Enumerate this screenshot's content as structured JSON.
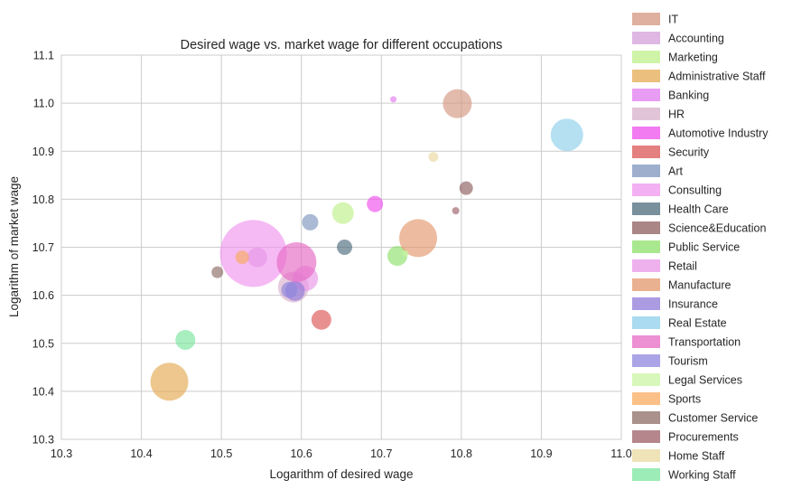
{
  "chart_data": {
    "type": "scatter",
    "title": "Desired wage vs. market wage for different occupations",
    "xlabel": "Logarithm of desired wage",
    "ylabel": "Logarithm of market wage",
    "xlim": [
      10.3,
      11.0
    ],
    "ylim": [
      10.3,
      11.1
    ],
    "xticks": [
      10.3,
      10.4,
      10.5,
      10.6,
      10.7,
      10.8,
      10.9,
      11.0
    ],
    "yticks": [
      10.3,
      10.4,
      10.5,
      10.6,
      10.7,
      10.8,
      10.9,
      11.0,
      11.1
    ],
    "xtick_labels": [
      "10.3",
      "10.4",
      "10.5",
      "10.6",
      "10.7",
      "10.8",
      "10.9",
      "11.0"
    ],
    "ytick_labels": [
      "10.3",
      "10.4",
      "10.5",
      "10.6",
      "10.7",
      "10.8",
      "10.9",
      "11.0",
      "11.1"
    ],
    "grid": true,
    "legend_position": "right-outside",
    "series": [
      {
        "name": "IT",
        "color": "#d4967f",
        "x": 10.795,
        "y": 10.999,
        "size": 16
      },
      {
        "name": "Accounting",
        "color": "#d49fd9",
        "x": 10.545,
        "y": 10.679,
        "size": 11
      },
      {
        "name": "Marketing",
        "color": "#bff08a",
        "x": 10.652,
        "y": 10.771,
        "size": 12
      },
      {
        "name": "Administrative Staff",
        "color": "#e4a952",
        "x": 10.435,
        "y": 10.42,
        "size": 21
      },
      {
        "name": "Banking",
        "color": "#e27bf0",
        "x": 10.715,
        "y": 11.008,
        "size": 3.5
      },
      {
        "name": "HR",
        "color": "#d8b0cc",
        "x": 10.59,
        "y": 10.617,
        "size": 17
      },
      {
        "name": "Automotive Industry",
        "color": "#ee4fee",
        "x": 10.692,
        "y": 10.79,
        "size": 9
      },
      {
        "name": "Security",
        "color": "#db5555",
        "x": 10.625,
        "y": 10.549,
        "size": 11
      },
      {
        "name": "Art",
        "color": "#7d94bd",
        "x": 10.611,
        "y": 10.752,
        "size": 9
      },
      {
        "name": "Consulting",
        "color": "#ef95ee",
        "x": 10.54,
        "y": 10.687,
        "size": 37
      },
      {
        "name": "Health Care",
        "color": "#4c6b7c",
        "x": 10.654,
        "y": 10.7,
        "size": 8.5
      },
      {
        "name": "Science&Education",
        "color": "#8e5e5e",
        "x": 10.806,
        "y": 10.823,
        "size": 7.5
      },
      {
        "name": "Public Service",
        "color": "#8ce06a",
        "x": 10.72,
        "y": 10.682,
        "size": 11
      },
      {
        "name": "Retail",
        "color": "#ea96e8",
        "x": 10.605,
        "y": 10.635,
        "size": 14
      },
      {
        "name": "Manufacture",
        "color": "#e3976b",
        "x": 10.746,
        "y": 10.719,
        "size": 21
      },
      {
        "name": "Insurance",
        "color": "#8f7ad8",
        "x": 10.592,
        "y": 10.609,
        "size": 11
      },
      {
        "name": "Real Estate",
        "color": "#8ecfeb",
        "x": 10.932,
        "y": 10.934,
        "size": 18
      },
      {
        "name": "Transportation",
        "color": "#e769c4",
        "x": 10.594,
        "y": 10.669,
        "size": 22
      },
      {
        "name": "Tourism",
        "color": "#8f86dd",
        "x": 10.585,
        "y": 10.611,
        "size": 9
      },
      {
        "name": "Legal Services",
        "color": "#c9f6a3",
        "x": 10.73,
        "y": 10.687,
        "size": 3.5
      },
      {
        "name": "Sports",
        "color": "#f9ab5f",
        "x": 10.526,
        "y": 10.679,
        "size": 7.5
      },
      {
        "name": "Customer Service",
        "color": "#8e6c66",
        "x": 10.495,
        "y": 10.648,
        "size": 6.5
      },
      {
        "name": "Procurements",
        "color": "#9c5f67",
        "x": 10.793,
        "y": 10.776,
        "size": 4
      },
      {
        "name": "Home Staff",
        "color": "#ead9a0",
        "x": 10.765,
        "y": 10.888,
        "size": 5.5
      },
      {
        "name": "Working Staff",
        "color": "#79e59d",
        "x": 10.455,
        "y": 10.507,
        "size": 11
      }
    ]
  }
}
